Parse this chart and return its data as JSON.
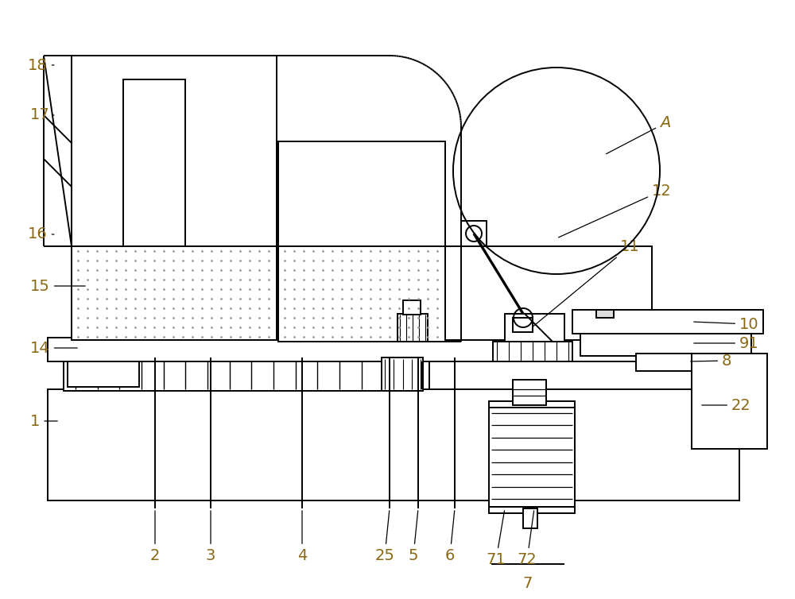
{
  "bg_color": "#ffffff",
  "line_color": "#000000",
  "label_color": "#8B6914",
  "fig_width": 10.0,
  "fig_height": 7.54,
  "dpi": 100
}
